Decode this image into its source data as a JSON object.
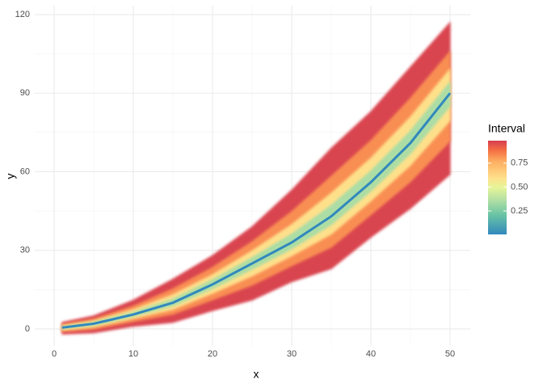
{
  "chart_data": {
    "type": "interval",
    "x_label": "x",
    "y_label": "y",
    "legend_title": "Interval",
    "x": [
      1,
      5,
      10,
      15,
      20,
      25,
      30,
      35,
      40,
      45,
      50
    ],
    "median": {
      "color": "#3288bd",
      "values": [
        0.5,
        2,
        5.5,
        10,
        17,
        25,
        33,
        43,
        56,
        71,
        90
      ]
    },
    "bands": [
      {
        "level": 0.95,
        "color": "#d9444f",
        "lower": [
          -2,
          -1.5,
          1,
          2.5,
          7,
          11,
          18,
          23,
          35,
          46,
          59
        ],
        "upper": [
          2.5,
          5,
          11,
          19,
          28,
          39,
          53,
          69,
          83,
          100,
          117
        ]
      },
      {
        "level": 0.75,
        "color": "#f98e52",
        "lower": [
          -1.0,
          -0.1,
          2.8,
          5.6,
          11.1,
          16.7,
          24.1,
          31.2,
          43.6,
          56.2,
          71.7
        ],
        "upper": [
          1.7,
          3.8,
          8.7,
          15.3,
          23.5,
          33.3,
          44.8,
          58.3,
          71.9,
          88.1,
          105.9
        ]
      },
      {
        "level": 0.5,
        "color": "#fee08b",
        "lower": [
          -0.4,
          0.8,
          4.0,
          7.4,
          13.6,
          20.2,
          27.9,
          36.2,
          48.9,
          62.5,
          79.5
        ],
        "upper": [
          1.2,
          3.0,
          7.4,
          13.1,
          20.7,
          29.8,
          39.8,
          51.8,
          65.2,
          80.9,
          99.2
        ]
      },
      {
        "level": 0.25,
        "color": "#abdda4",
        "lower": [
          0.1,
          1.4,
          4.8,
          8.8,
          15.4,
          22.8,
          30.6,
          39.8,
          52.6,
          67.0,
          85.0
        ],
        "upper": [
          0.8,
          2.5,
          6.4,
          11.4,
          18.8,
          27.2,
          36.2,
          47.2,
          60.3,
          75.6,
          94.3
        ]
      }
    ],
    "xlim": [
      -2.45,
      52.55
    ],
    "ylim": [
      -6.5,
      123.4
    ],
    "xticks": [
      0,
      10,
      20,
      30,
      40,
      50
    ],
    "yticks": [
      0,
      30,
      60,
      90,
      120
    ],
    "minor_xticks": [
      5,
      15,
      25,
      35,
      45
    ],
    "minor_yticks": [
      15,
      45,
      75,
      105
    ],
    "grid": true,
    "legend_lim": [
      0.005,
      0.985
    ],
    "legend_ticks": [
      {
        "value": 0.25,
        "label": "0.25"
      },
      {
        "value": 0.5,
        "label": "0.50"
      },
      {
        "value": 0.75,
        "label": "0.75"
      }
    ]
  }
}
